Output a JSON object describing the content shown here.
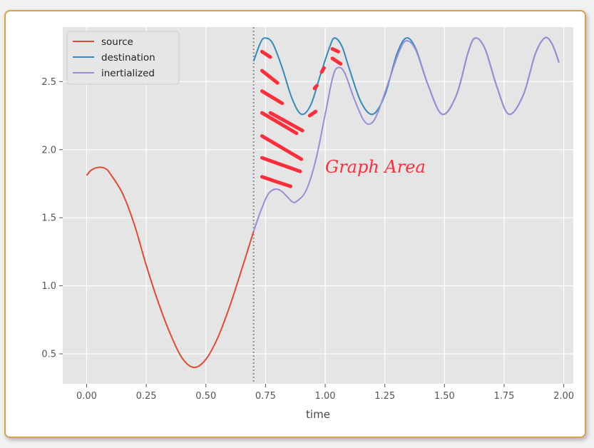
{
  "chart_data": {
    "type": "line",
    "xlabel": "time",
    "ylabel": "",
    "xlim": [
      -0.1,
      2.04
    ],
    "ylim": [
      0.28,
      2.9
    ],
    "xticks": [
      0.0,
      0.25,
      0.5,
      0.75,
      1.0,
      1.25,
      1.5,
      1.75,
      2.0
    ],
    "xtick_labels": [
      "0.00",
      "0.25",
      "0.50",
      "0.75",
      "1.00",
      "1.25",
      "1.50",
      "1.75",
      "2.00"
    ],
    "yticks": [
      0.5,
      1.0,
      1.5,
      2.0,
      2.5
    ],
    "ytick_labels": [
      "0.5",
      "1.0",
      "1.5",
      "2.0",
      "2.5"
    ],
    "grid": true,
    "legend": "top-left",
    "vline": {
      "x": 0.7,
      "style": "dotted"
    },
    "series": [
      {
        "name": "source",
        "color": "#e24a33",
        "points": [
          [
            0.0,
            1.81
          ],
          [
            0.02,
            1.85
          ],
          [
            0.05,
            1.87
          ],
          [
            0.08,
            1.86
          ],
          [
            0.1,
            1.82
          ],
          [
            0.15,
            1.68
          ],
          [
            0.2,
            1.45
          ],
          [
            0.25,
            1.15
          ],
          [
            0.3,
            0.88
          ],
          [
            0.35,
            0.65
          ],
          [
            0.4,
            0.47
          ],
          [
            0.45,
            0.4
          ],
          [
            0.5,
            0.46
          ],
          [
            0.55,
            0.62
          ],
          [
            0.6,
            0.85
          ],
          [
            0.65,
            1.12
          ],
          [
            0.7,
            1.4
          ]
        ]
      },
      {
        "name": "destination",
        "color": "#348abd",
        "points": [
          [
            0.7,
            2.65
          ],
          [
            0.73,
            2.79
          ],
          [
            0.75,
            2.82
          ],
          [
            0.78,
            2.78
          ],
          [
            0.82,
            2.6
          ],
          [
            0.86,
            2.38
          ],
          [
            0.9,
            2.26
          ],
          [
            0.94,
            2.33
          ],
          [
            0.98,
            2.55
          ],
          [
            1.02,
            2.76
          ],
          [
            1.04,
            2.82
          ],
          [
            1.07,
            2.76
          ],
          [
            1.1,
            2.6
          ],
          [
            1.15,
            2.35
          ],
          [
            1.2,
            2.26
          ],
          [
            1.25,
            2.4
          ],
          [
            1.3,
            2.7
          ],
          [
            1.34,
            2.82
          ],
          [
            1.38,
            2.74
          ],
          [
            1.43,
            2.48
          ],
          [
            1.49,
            2.26
          ],
          [
            1.55,
            2.4
          ],
          [
            1.6,
            2.72
          ],
          [
            1.63,
            2.82
          ],
          [
            1.67,
            2.74
          ],
          [
            1.72,
            2.46
          ],
          [
            1.77,
            2.26
          ],
          [
            1.83,
            2.4
          ],
          [
            1.88,
            2.7
          ],
          [
            1.92,
            2.82
          ],
          [
            1.95,
            2.78
          ],
          [
            1.98,
            2.64
          ]
        ]
      },
      {
        "name": "inertialized",
        "color": "#988ed5",
        "points": [
          [
            0.7,
            1.4
          ],
          [
            0.73,
            1.55
          ],
          [
            0.76,
            1.67
          ],
          [
            0.79,
            1.71
          ],
          [
            0.82,
            1.69
          ],
          [
            0.86,
            1.62
          ],
          [
            0.88,
            1.62
          ],
          [
            0.92,
            1.7
          ],
          [
            0.96,
            1.92
          ],
          [
            1.0,
            2.26
          ],
          [
            1.03,
            2.52
          ],
          [
            1.05,
            2.6
          ],
          [
            1.08,
            2.57
          ],
          [
            1.12,
            2.38
          ],
          [
            1.16,
            2.22
          ],
          [
            1.19,
            2.19
          ],
          [
            1.22,
            2.27
          ],
          [
            1.27,
            2.52
          ],
          [
            1.31,
            2.72
          ],
          [
            1.34,
            2.8
          ],
          [
            1.38,
            2.73
          ],
          [
            1.43,
            2.48
          ],
          [
            1.49,
            2.26
          ],
          [
            1.55,
            2.4
          ],
          [
            1.6,
            2.72
          ],
          [
            1.63,
            2.82
          ],
          [
            1.67,
            2.74
          ],
          [
            1.72,
            2.46
          ],
          [
            1.77,
            2.26
          ],
          [
            1.83,
            2.4
          ],
          [
            1.88,
            2.7
          ],
          [
            1.92,
            2.82
          ],
          [
            1.95,
            2.78
          ],
          [
            1.98,
            2.64
          ]
        ]
      }
    ],
    "annotation": {
      "text": "Graph Area",
      "color": "#ff2e3b",
      "x": 1.0,
      "y": 1.83
    }
  }
}
